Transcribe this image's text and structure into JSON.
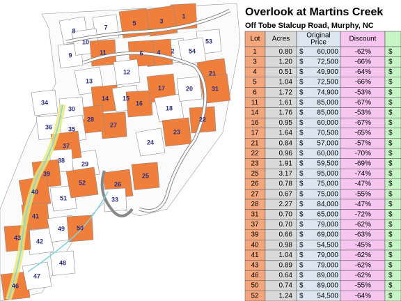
{
  "title": "Overlook at Martins Creek",
  "subtitle": "Off Tobe Stalcup Road, Murphy, NC",
  "map": {
    "lots": [
      "1",
      "2",
      "3",
      "4",
      "5",
      "6",
      "7",
      "8",
      "9",
      "10",
      "11",
      "12",
      "13",
      "14",
      "15",
      "16",
      "17",
      "18",
      "20",
      "21",
      "22",
      "23",
      "24",
      "25",
      "26",
      "27",
      "28",
      "29",
      "30",
      "31",
      "33",
      "34",
      "35",
      "36",
      "37",
      "38",
      "39",
      "40",
      "41",
      "42",
      "43",
      "46",
      "47",
      "48",
      "49",
      "50",
      "51",
      "52",
      "53",
      "54"
    ]
  },
  "table": {
    "headers": [
      "Lot",
      "Acres",
      [
        "Original",
        "Price"
      ],
      "Discount"
    ],
    "currency": "$",
    "rows": [
      [
        "1",
        "0.80",
        "60,000",
        "-62%"
      ],
      [
        "3",
        "1.20",
        "72,500",
        "-66%"
      ],
      [
        "4",
        "0.51",
        "49,900",
        "-64%"
      ],
      [
        "5",
        "1.04",
        "72,500",
        "-66%"
      ],
      [
        "6",
        "1.72",
        "74,900",
        "-53%"
      ],
      [
        "11",
        "1.61",
        "85,000",
        "-67%"
      ],
      [
        "14",
        "1.76",
        "85,000",
        "-53%"
      ],
      [
        "16",
        "0.95",
        "60,000",
        "-67%"
      ],
      [
        "17",
        "1.64",
        "70,500",
        "-65%"
      ],
      [
        "21",
        "0.84",
        "57,000",
        "-57%"
      ],
      [
        "22",
        "0.96",
        "60,000",
        "-70%"
      ],
      [
        "23",
        "1.91",
        "59,500",
        "-69%"
      ],
      [
        "25",
        "3.17",
        "95,000",
        "-74%"
      ],
      [
        "26",
        "0.78",
        "75,000",
        "-47%"
      ],
      [
        "27",
        "0.67",
        "75,000",
        "-55%"
      ],
      [
        "28",
        "2.27",
        "84,000",
        "-47%"
      ],
      [
        "31",
        "0.70",
        "65,000",
        "-72%"
      ],
      [
        "37",
        "0.70",
        "79,000",
        "-62%"
      ],
      [
        "39",
        "0.66",
        "69,000",
        "-63%"
      ],
      [
        "40",
        "0.98",
        "54,500",
        "-45%"
      ],
      [
        "41",
        "1.04",
        "79,000",
        "-62%"
      ],
      [
        "43",
        "0.89",
        "79,000",
        "-62%"
      ],
      [
        "46",
        "0.64",
        "89,000",
        "-62%"
      ],
      [
        "50",
        "0.74",
        "89,000",
        "-55%"
      ],
      [
        "52",
        "1.24",
        "54,500",
        "-64%"
      ]
    ]
  }
}
